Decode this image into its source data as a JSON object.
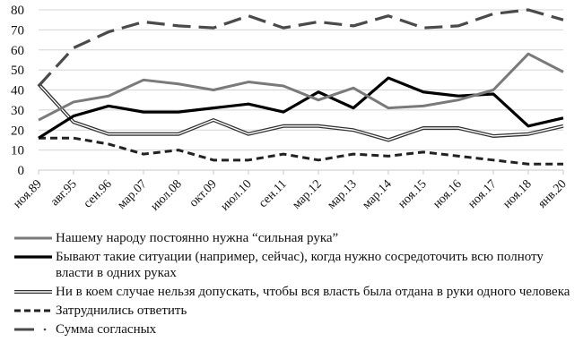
{
  "chart_data": {
    "type": "line",
    "title": "",
    "xlabel": "",
    "ylabel": "",
    "ylim": [
      0,
      80
    ],
    "yticks": [
      0,
      10,
      20,
      30,
      40,
      50,
      60,
      70,
      80
    ],
    "grid": true,
    "legend_position": "bottom",
    "categories": [
      "ноя.89",
      "авг.95",
      "сен.96",
      "мар.07",
      "июл.08",
      "окт.09",
      "июл.10",
      "сен.11",
      "мар.12",
      "мар.13",
      "мар.14",
      "ноя.15",
      "ноя.16",
      "ноя.17",
      "ноя.18",
      "янв.20"
    ],
    "series": [
      {
        "name": "Нашему народу постоянно нужна “сильная рука”",
        "style": "solid-gray",
        "color": "#7a7a7a",
        "values": [
          25,
          34,
          37,
          45,
          43,
          40,
          44,
          42,
          35,
          41,
          31,
          32,
          35,
          40,
          58,
          49
        ]
      },
      {
        "name": "Бывают такие ситуации (например, сейчас), когда нужно сосредоточить всю полноту власти в одних руках",
        "style": "solid-black",
        "color": "#000000",
        "values": [
          16,
          27,
          32,
          29,
          29,
          31,
          33,
          29,
          39,
          31,
          46,
          39,
          37,
          38,
          22,
          26
        ]
      },
      {
        "name": "Ни в коем случае нельзя допускать, чтобы вся власть была отдана в руки одного человека",
        "style": "double-line",
        "color": "#333333",
        "values": [
          43,
          24,
          18,
          18,
          18,
          25,
          18,
          22,
          22,
          20,
          15,
          21,
          21,
          17,
          18,
          22
        ]
      },
      {
        "name": "Затруднились ответить",
        "style": "short-dash",
        "color": "#222222",
        "values": [
          16,
          16,
          13,
          8,
          10,
          5,
          5,
          8,
          5,
          8,
          7,
          9,
          7,
          5,
          3,
          3
        ]
      },
      {
        "name": "Сумма согласных",
        "style": "long-dash",
        "color": "#4a4a4a",
        "values": [
          42,
          61,
          69,
          74,
          72,
          71,
          77,
          71,
          74,
          72,
          77,
          71,
          72,
          78,
          80,
          75
        ]
      }
    ]
  },
  "legend": {
    "items": [
      {
        "label": "Нашему народу постоянно нужна “сильная рука”"
      },
      {
        "label": "Бывают такие ситуации (например, сейчас), когда нужно сосредоточить всю полноту власти в одних руках"
      },
      {
        "label": "Ни в коем случае нельзя допускать, чтобы вся власть была отдана в руки одного человека"
      },
      {
        "label": "Затруднились ответить"
      },
      {
        "label": "Сумма согласных"
      }
    ]
  }
}
